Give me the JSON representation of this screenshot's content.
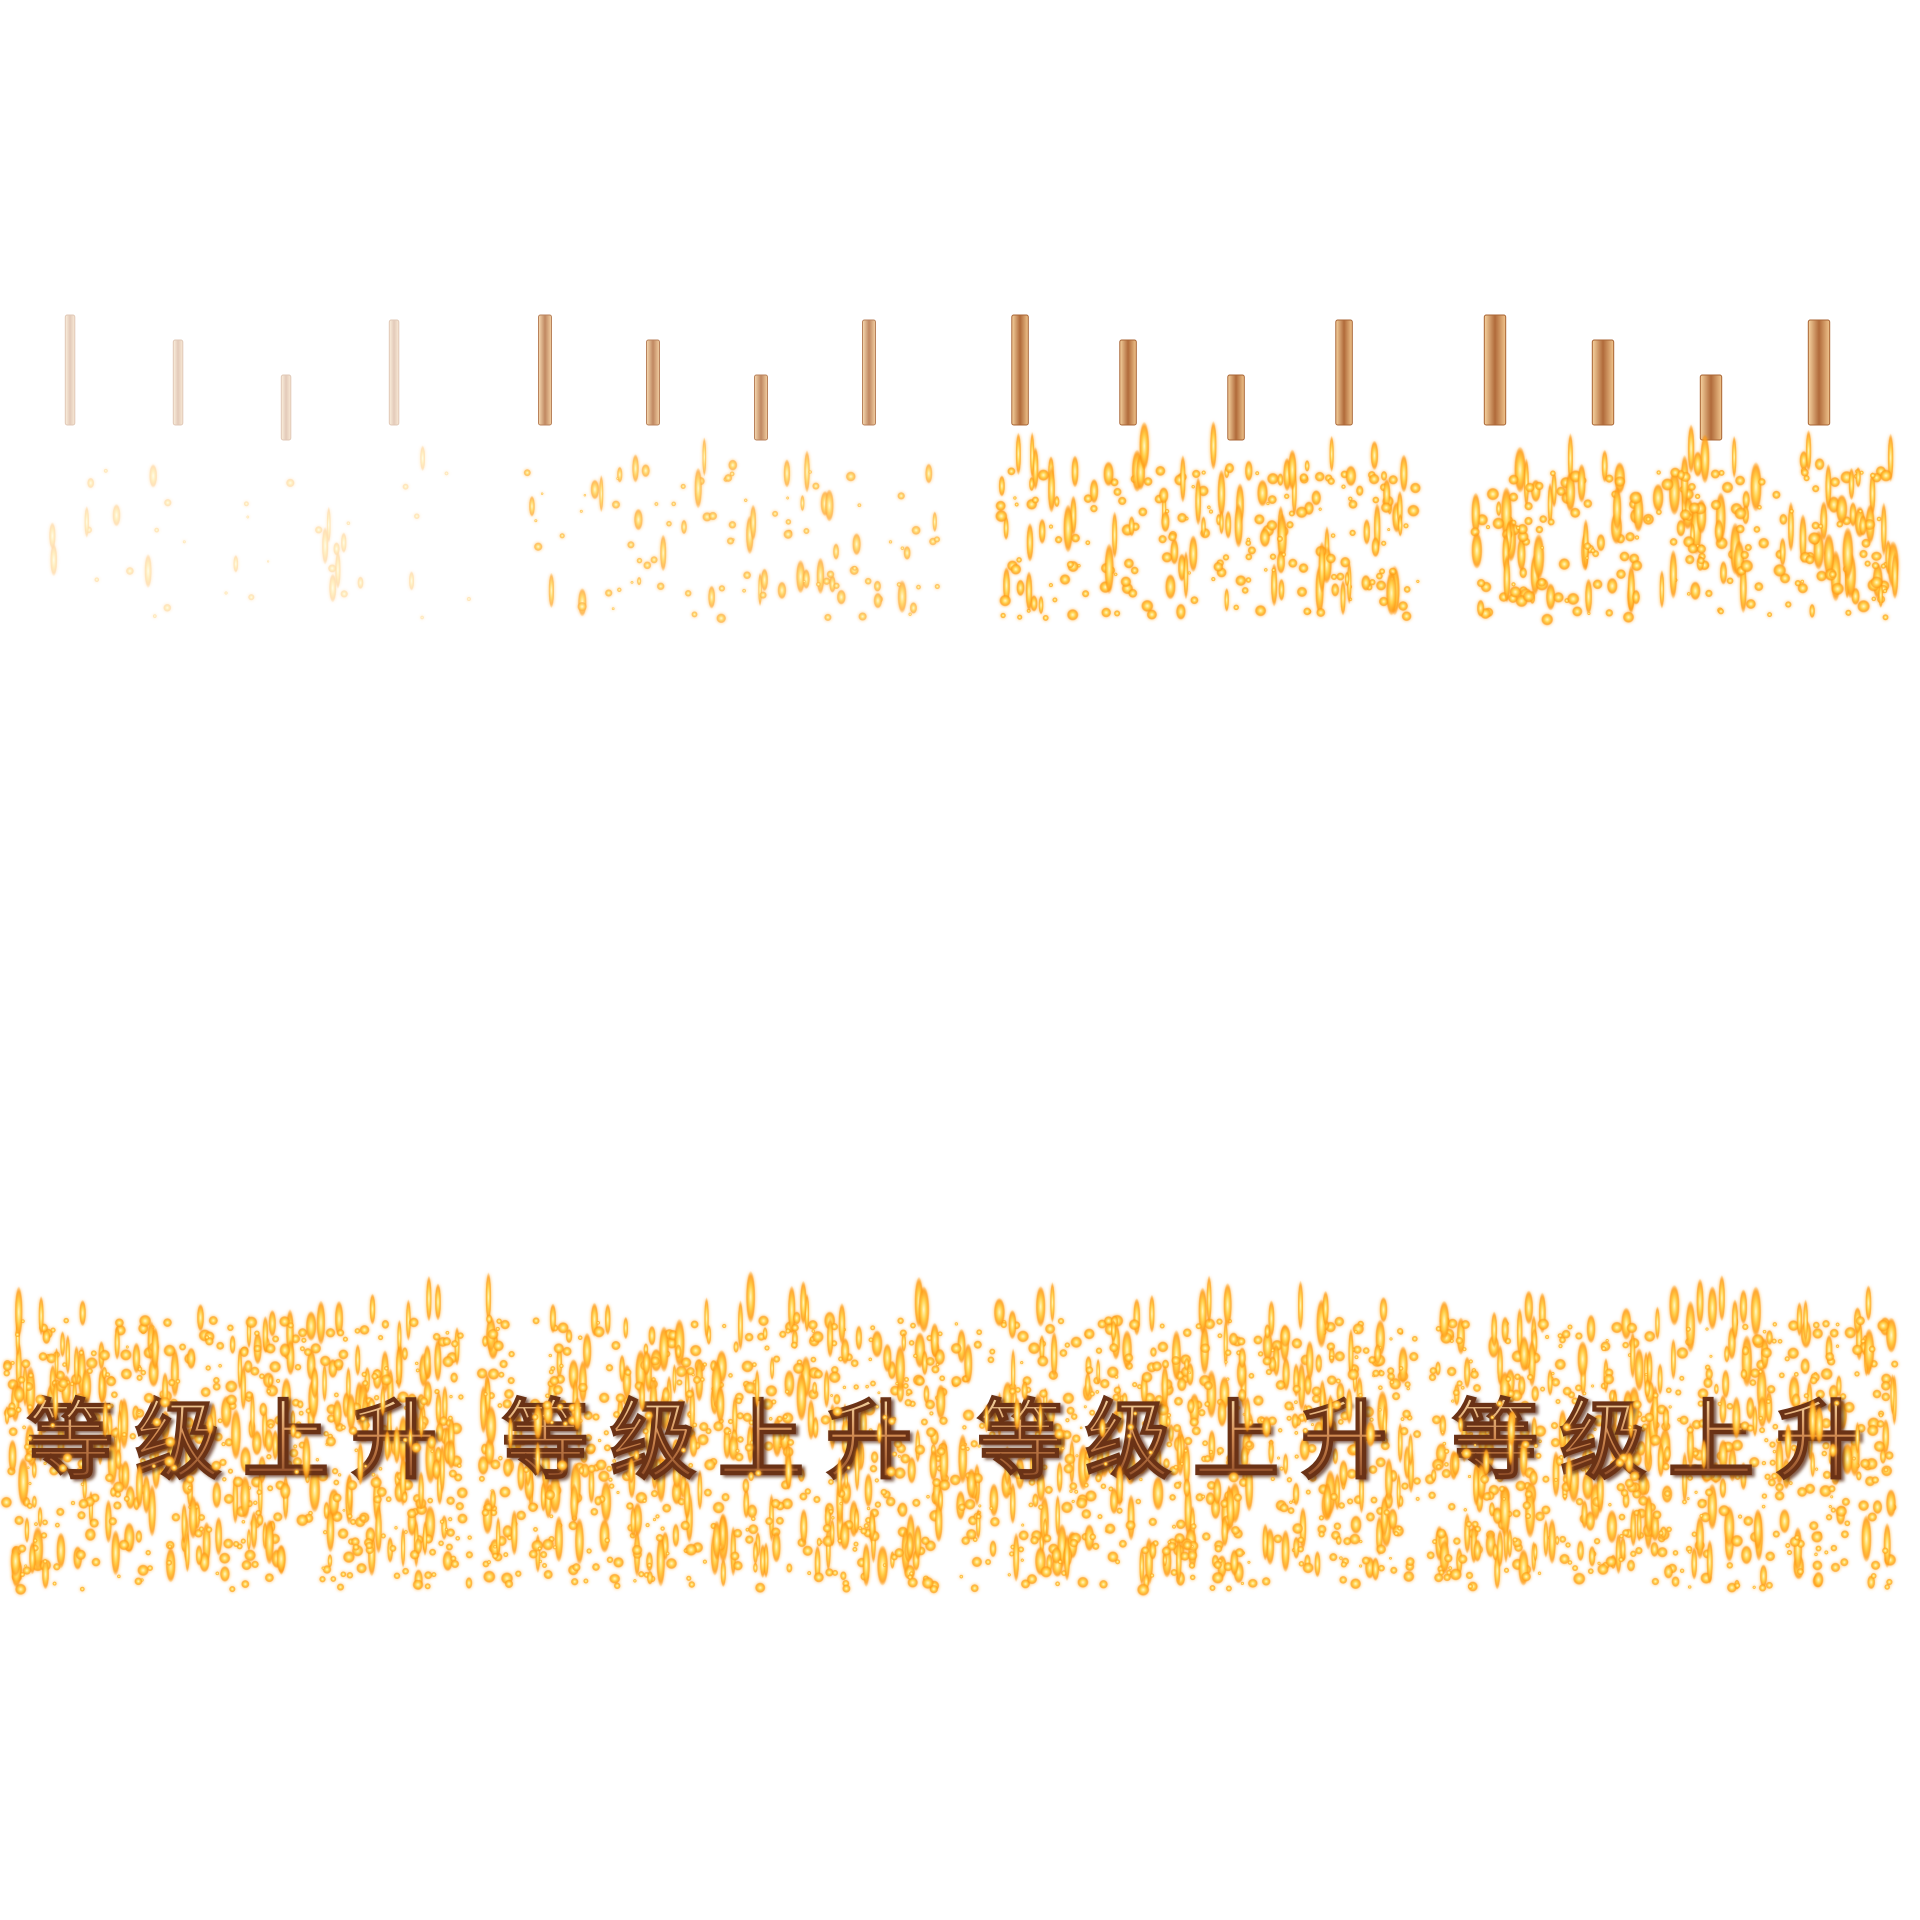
{
  "sprite_sheet": {
    "title": "",
    "phrase": "等级上升",
    "characters": [
      "等",
      "级",
      "上",
      "升"
    ],
    "colors": {
      "background": "#ffffff",
      "text_light": "#f6c98c",
      "text_mid": "#c87a45",
      "text_dark": "#7a3a1c",
      "spark_core": "#fff6a8",
      "spark_glow": "#ffb21e",
      "spark_edge": "#ff8a00"
    },
    "rows": [
      {
        "name": "rotation-row",
        "frames": [
          {
            "rotation_progress": 0.05,
            "opacity": 0.35,
            "spark_amount": 0.08
          },
          {
            "rotation_progress": 0.1,
            "opacity": 0.8,
            "spark_amount": 0.35
          },
          {
            "rotation_progress": 0.15,
            "opacity": 1.0,
            "spark_amount": 0.85
          },
          {
            "rotation_progress": 0.22,
            "opacity": 1.0,
            "spark_amount": 1.0
          }
        ]
      },
      {
        "name": "reveal-row",
        "frames": [
          {
            "rotation_progress": 1.0,
            "opacity": 1.0,
            "spark_amount": 1.0
          },
          {
            "rotation_progress": 1.0,
            "opacity": 1.0,
            "spark_amount": 1.0
          },
          {
            "rotation_progress": 1.0,
            "opacity": 1.0,
            "spark_amount": 1.0
          },
          {
            "rotation_progress": 1.0,
            "opacity": 1.0,
            "spark_amount": 1.0
          }
        ]
      }
    ]
  }
}
